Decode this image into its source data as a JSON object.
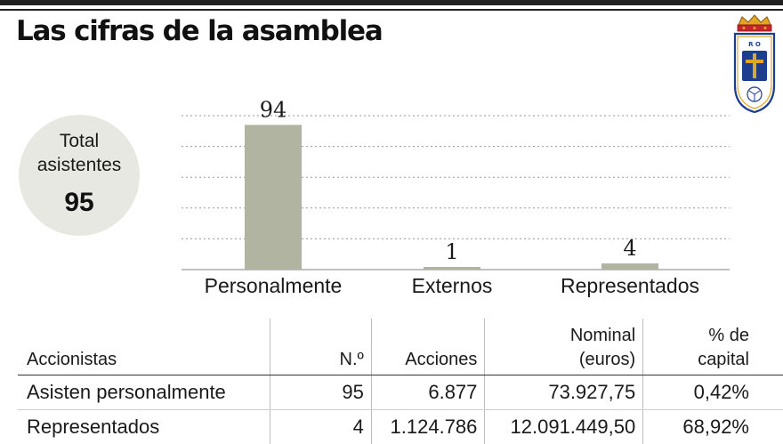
{
  "title": "Las cifras de la asamblea",
  "crest": {
    "name": "Real Oviedo",
    "letters": "R O"
  },
  "total": {
    "label_line1": "Total",
    "label_line2": "asistentes",
    "value": "95"
  },
  "chart_data": {
    "type": "bar",
    "title": "Las cifras de la asamblea",
    "categories": [
      "Personalmente",
      "Externos",
      "Representados"
    ],
    "values": [
      94,
      1,
      4
    ],
    "data_labels": [
      "94",
      "1",
      "4"
    ],
    "xlabel": "",
    "ylabel": "",
    "ylim": [
      0,
      100
    ],
    "grid": true,
    "bar_color": "#b1b4a1",
    "grid_color": "#9a9a9a"
  },
  "table": {
    "headers": [
      {
        "line1": "",
        "line2": "Accionistas"
      },
      {
        "line1": "",
        "line2": "N.º"
      },
      {
        "line1": "",
        "line2": "Acciones"
      },
      {
        "line1": "Nominal",
        "line2": "(euros)"
      },
      {
        "line1": "% de",
        "line2": "capital"
      }
    ],
    "rows": [
      [
        "Asisten personalmente",
        "95",
        "6.877",
        "73.927,75",
        "0,42%"
      ],
      [
        "Representados",
        "4",
        "1.124.786",
        "12.091.449,50",
        "68,92%"
      ]
    ]
  },
  "colors": {
    "bar": "#b1b4a1",
    "circle": "#e8e8e2",
    "crest_blue": "#1d3d8f",
    "crest_gold": "#e1a624",
    "crest_red": "#c4262e"
  }
}
